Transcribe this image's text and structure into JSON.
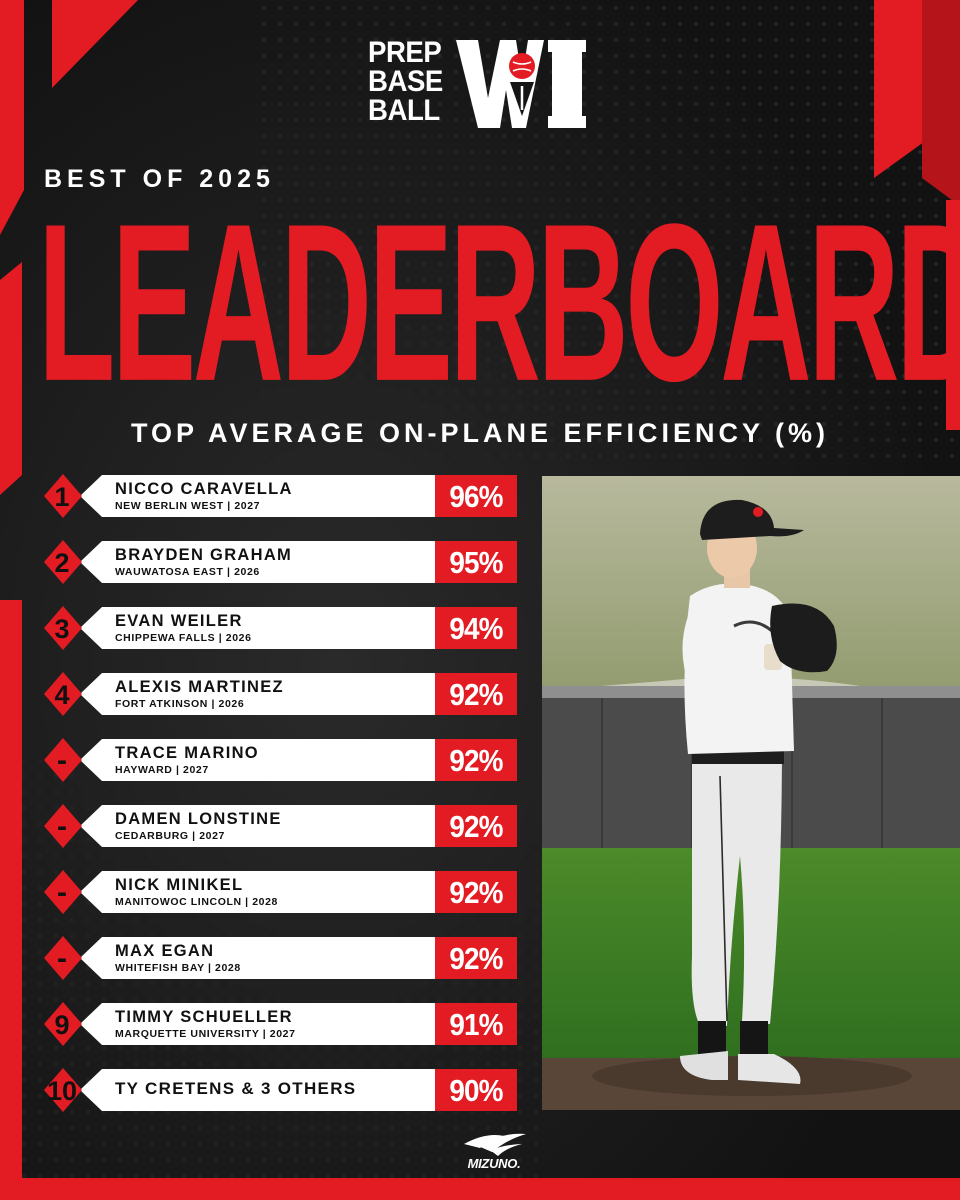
{
  "brand": {
    "line1": "PREP",
    "line2": "BASE",
    "line3": "BALL",
    "mark": "WI"
  },
  "header": {
    "kicker": "BEST OF 2025",
    "title": "LEADERBOARD",
    "metric": "TOP AVERAGE ON-PLANE EFFICIENCY (%)"
  },
  "leaderboard": [
    {
      "rank": "1",
      "name": "NICCO CARAVELLA",
      "info": "NEW BERLIN WEST | 2027",
      "score": "96%"
    },
    {
      "rank": "2",
      "name": "BRAYDEN GRAHAM",
      "info": "WAUWATOSA EAST | 2026",
      "score": "95%"
    },
    {
      "rank": "3",
      "name": "EVAN WEILER",
      "info": "CHIPPEWA FALLS | 2026",
      "score": "94%"
    },
    {
      "rank": "4",
      "name": "ALEXIS MARTINEZ",
      "info": "FORT ATKINSON | 2026",
      "score": "92%"
    },
    {
      "rank": "-",
      "name": "TRACE MARINO",
      "info": "HAYWARD | 2027",
      "score": "92%"
    },
    {
      "rank": "-",
      "name": "DAMEN LONSTINE",
      "info": "CEDARBURG | 2027",
      "score": "92%"
    },
    {
      "rank": "-",
      "name": "NICK MINIKEL",
      "info": "MANITOWOC LINCOLN | 2028",
      "score": "92%"
    },
    {
      "rank": "-",
      "name": "MAX EGAN",
      "info": "WHITEFISH BAY | 2028",
      "score": "92%"
    },
    {
      "rank": "9",
      "name": "TIMMY SCHUELLER",
      "info": "MARQUETTE UNIVERSITY | 2027",
      "score": "91%"
    },
    {
      "rank": "10",
      "name": "TY CRETENS & 3 OTHERS",
      "info": "",
      "score": "90%"
    }
  ],
  "sponsor": {
    "name": "MIZUNO."
  },
  "colors": {
    "accent": "#e31b23",
    "background": "#151515",
    "row": "#ffffff"
  }
}
